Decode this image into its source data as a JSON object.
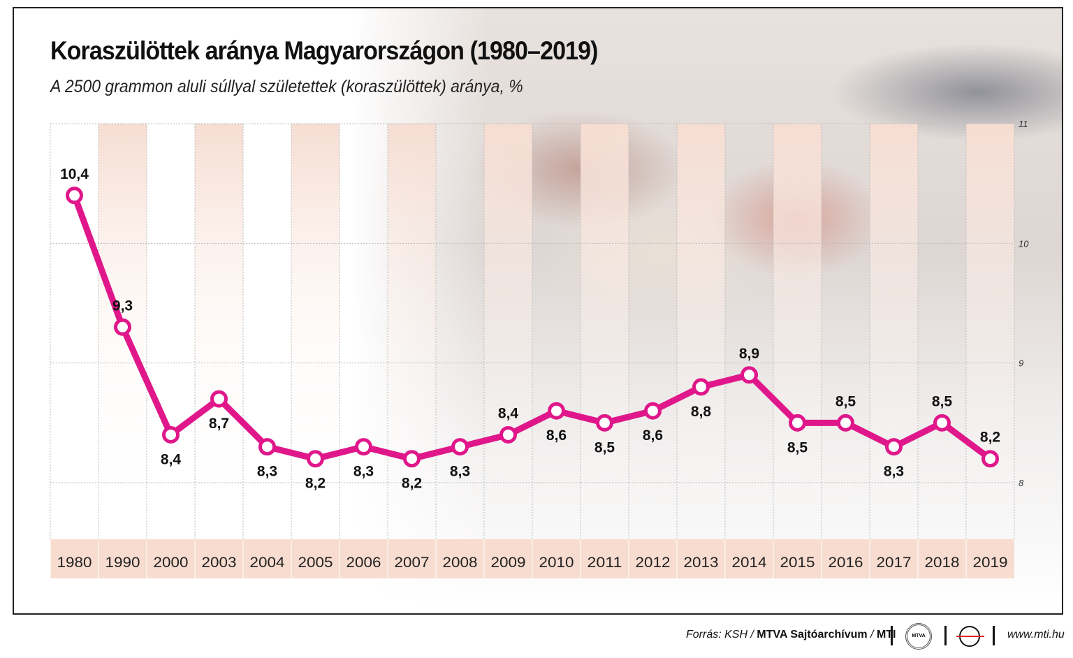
{
  "title": "Koraszülöttek aránya Magyarországon (1980–2019)",
  "subtitle": "A 2500 grammon aluli súllyal születettek (koraszülöttek) aránya, %",
  "chart_data": {
    "type": "line",
    "title": "Koraszülöttek aránya Magyarországon (1980–2019)",
    "subtitle": "A 2500 grammon aluli súllyal születettek (koraszülöttek) aránya, %",
    "categories": [
      "1980",
      "1990",
      "2000",
      "2003",
      "2004",
      "2005",
      "2006",
      "2007",
      "2008",
      "2009",
      "2010",
      "2011",
      "2012",
      "2013",
      "2014",
      "2015",
      "2016",
      "2017",
      "2018",
      "2019"
    ],
    "values": [
      10.4,
      9.3,
      8.4,
      8.7,
      8.3,
      8.2,
      8.3,
      8.2,
      8.3,
      8.4,
      8.6,
      8.5,
      8.6,
      8.8,
      8.9,
      8.5,
      8.5,
      8.3,
      8.5,
      8.2
    ],
    "labels": [
      "10,4",
      "9,3",
      "8,4",
      "8,7",
      "8,3",
      "8,2",
      "8,3",
      "8,2",
      "8,3",
      "8,4",
      "8,6",
      "8,5",
      "8,6",
      "8,8",
      "8,9",
      "8,5",
      "8,5",
      "8,3",
      "8,5",
      "8,2"
    ],
    "ylim": [
      8,
      11
    ],
    "yticks": [
      "8",
      "9",
      "10",
      "11"
    ],
    "grid": true,
    "color": "#e0178a"
  },
  "footer": {
    "source_prefix": "Forrás: KSH / ",
    "source_bold": "MTVA Sajtóarchívum",
    "sep": " / ",
    "mti": "MTI",
    "mtva_logo": "MTVA",
    "url": "www.mti.hu"
  }
}
